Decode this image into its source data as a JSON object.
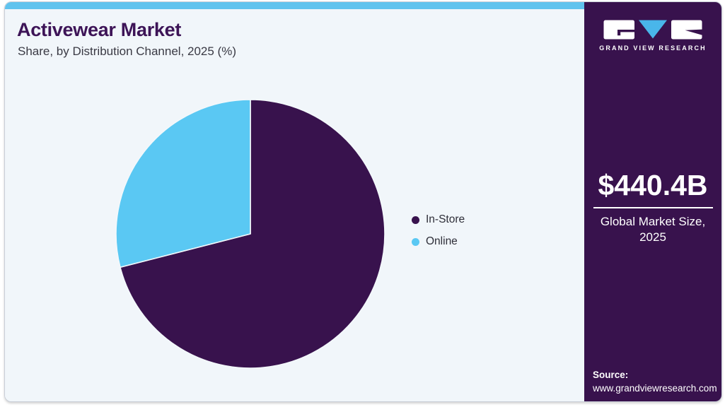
{
  "header": {
    "title": "Activewear Market",
    "subtitle": "Share, by Distribution Channel, 2025 (%)"
  },
  "chart_data": {
    "type": "pie",
    "title": "Activewear Market Share, by Distribution Channel, 2025 (%)",
    "categories": [
      "In-Store",
      "Online"
    ],
    "values": [
      71,
      29
    ],
    "unit": "%",
    "colors": [
      "#38124D",
      "#5AC8F3"
    ],
    "start_angle_deg": 0,
    "direction": "clockwise",
    "legend_position": "right",
    "data_labels_shown": false,
    "values_note": "shares estimated from slice angles (no numeric labels in image)"
  },
  "legend": {
    "items": [
      {
        "label": "In-Store",
        "color": "#38124D"
      },
      {
        "label": "Online",
        "color": "#5AC8F3"
      }
    ]
  },
  "sidebar": {
    "logo_text": "GRAND VIEW RESEARCH",
    "market_size": "$440.4B",
    "market_size_caption_line1": "Global Market Size,",
    "market_size_caption_line2": "2025",
    "source_label": "Source:",
    "source_url": "www.grandviewresearch.com"
  },
  "theme": {
    "sidebar_bg": "#38124D",
    "title_color": "#3D1457",
    "top_bar": "#60C3EE",
    "chart_bg": "#F1F6FA",
    "card_border": "#C9CED8",
    "text_dark": "#3A3A44",
    "logo_triangle": "#49B6EA",
    "slice_separator": "#F3F8FB"
  }
}
